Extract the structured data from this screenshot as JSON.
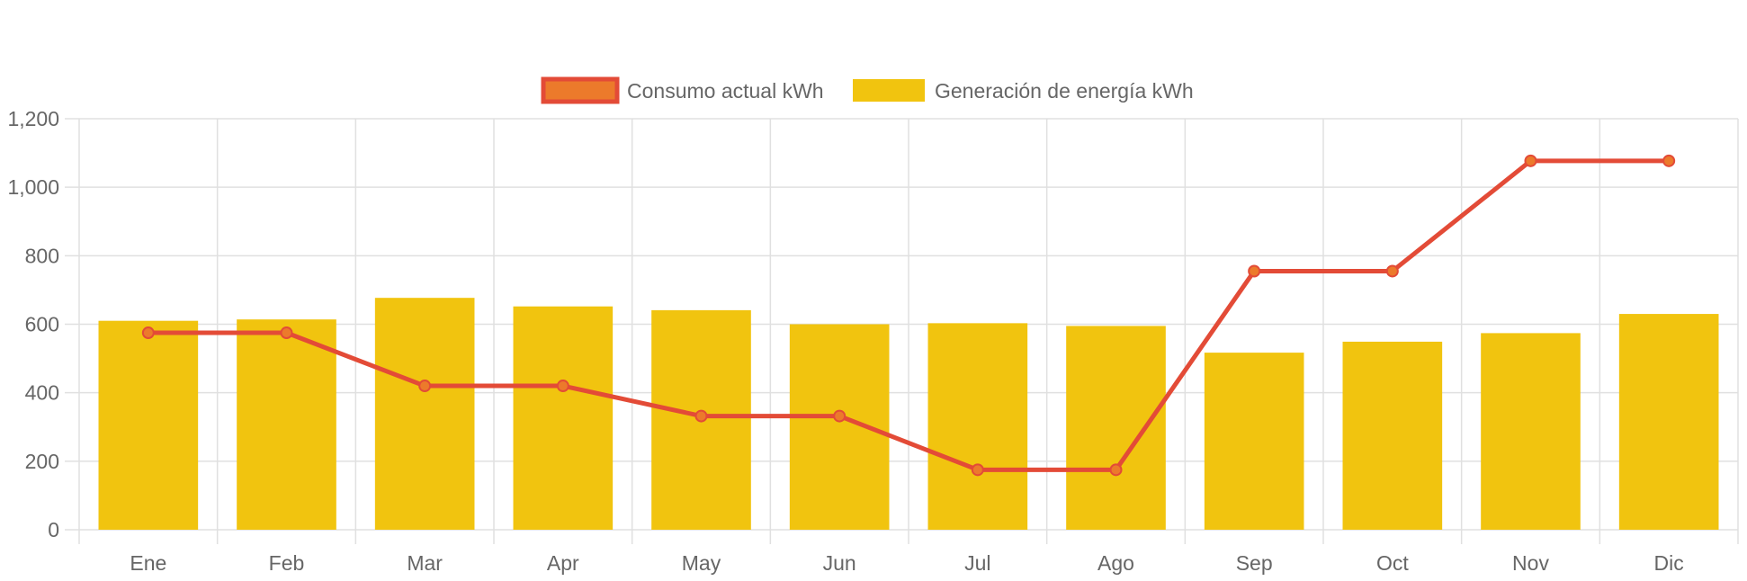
{
  "colors": {
    "line": "#e34b37",
    "line_point_fill": "#ec7a2b",
    "bar": "#f1c40f",
    "grid": "#e0e0e0",
    "axis_text": "#666666"
  },
  "chart_data": {
    "type": "bar",
    "title": "",
    "xlabel": "",
    "ylabel": "",
    "categories": [
      "Ene",
      "Feb",
      "Mar",
      "Apr",
      "May",
      "Jun",
      "Jul",
      "Ago",
      "Sep",
      "Oct",
      "Nov",
      "Dic"
    ],
    "ylim": [
      0,
      1200
    ],
    "yticks": [
      0,
      200,
      400,
      600,
      800,
      1000,
      1200
    ],
    "ytick_labels": [
      "0",
      "200",
      "400",
      "600",
      "800",
      "1,000",
      "1,200"
    ],
    "grid": true,
    "legend_position": "top-center",
    "series": [
      {
        "name": "Consumo actual kWh",
        "type": "line",
        "values": [
          575,
          575,
          420,
          420,
          332,
          332,
          175,
          175,
          755,
          755,
          1077,
          1077
        ]
      },
      {
        "name": "Generación de energía kWh",
        "type": "bar",
        "values": [
          610,
          614,
          677,
          652,
          641,
          600,
          603,
          595,
          517,
          549,
          574,
          630
        ]
      }
    ]
  }
}
